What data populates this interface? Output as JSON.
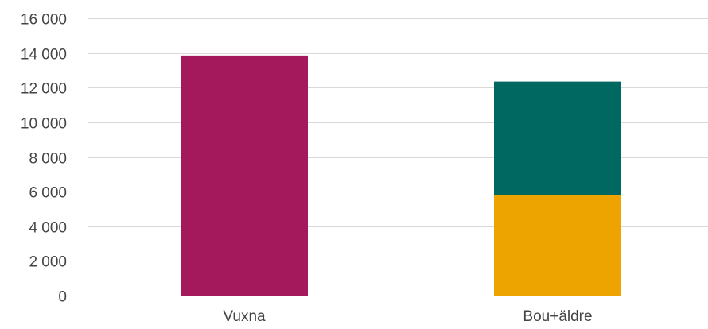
{
  "chart_data": {
    "type": "bar",
    "stacked": true,
    "categories": [
      "Vuxna",
      "Bou+äldre"
    ],
    "series": [
      {
        "color": "#a3195b",
        "values": [
          13850,
          0
        ]
      },
      {
        "color": "#eda400",
        "values": [
          0,
          5800
        ]
      },
      {
        "color": "#006860",
        "values": [
          0,
          6550
        ]
      }
    ],
    "ylim": [
      0,
      16000
    ],
    "yticks": [
      0,
      2000,
      4000,
      6000,
      8000,
      10000,
      12000,
      14000,
      16000
    ],
    "ytick_labels": [
      "0",
      "2 000",
      "4 000",
      "6 000",
      "8 000",
      "10 000",
      "12 000",
      "14 000",
      "16 000"
    ],
    "grid": true,
    "legend": "none"
  }
}
